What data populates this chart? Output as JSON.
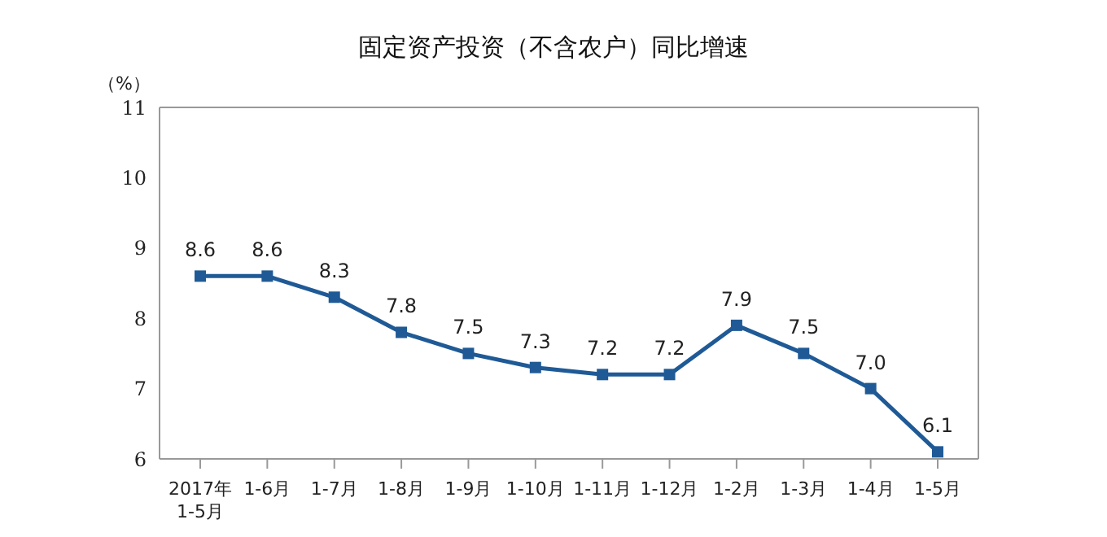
{
  "chart_data": {
    "type": "line",
    "title": "固定资产投资（不含农户）同比增速",
    "ylabel": "（%）",
    "categories": [
      "2017年\n1-5月",
      "1-6月",
      "1-7月",
      "1-8月",
      "1-9月",
      "1-10月",
      "1-11月",
      "1-12月",
      "1-2月",
      "1-3月",
      "1-4月",
      "1-5月"
    ],
    "series": [
      {
        "color": "#1f5a96",
        "values": [
          8.6,
          8.6,
          8.3,
          7.8,
          7.5,
          7.3,
          7.2,
          7.2,
          7.9,
          7.5,
          7.0,
          6.1
        ],
        "value_labels": [
          "8.6",
          "8.6",
          "8.3",
          "7.8",
          "7.5",
          "7.3",
          "7.2",
          "7.2",
          "7.9",
          "7.5",
          "7.0",
          "6.1"
        ]
      }
    ],
    "ylim": [
      6,
      11
    ],
    "yticks": [
      6,
      7,
      8,
      9,
      10,
      11
    ],
    "grid": false,
    "legend": false,
    "marker": "square",
    "line_style": "solid"
  }
}
